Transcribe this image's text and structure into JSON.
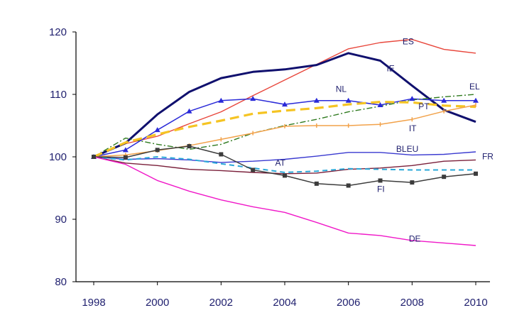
{
  "chart_data": {
    "type": "line",
    "title": "",
    "xlabel": "",
    "ylabel": "",
    "x": [
      1998,
      1999,
      2000,
      2001,
      2002,
      2003,
      2004,
      2005,
      2006,
      2007,
      2008,
      2009,
      2010
    ],
    "xticks": [
      1998,
      2000,
      2002,
      2004,
      2006,
      2008,
      2010
    ],
    "yticks": [
      80,
      90,
      100,
      110,
      120
    ],
    "xlim": [
      1998,
      2010
    ],
    "ylim": [
      80,
      120
    ],
    "grid": false,
    "legend": "none",
    "series": [
      {
        "name": "ES",
        "color": "#e8463b",
        "values": [
          100,
          102.1,
          103.3,
          105.3,
          107.2,
          109.8,
          112.3,
          114.8,
          117.3,
          118.3,
          118.8,
          117.2,
          116.6
        ]
      },
      {
        "name": "IE",
        "color": "#10106e",
        "values": [
          100,
          102.2,
          106.8,
          110.4,
          112.6,
          113.6,
          114.0,
          114.7,
          116.6,
          115.4,
          111.4,
          107.5,
          105.6
        ]
      },
      {
        "name": "NL",
        "color": "#2a2ad8",
        "values": [
          100,
          101.1,
          104.3,
          107.3,
          109.0,
          109.3,
          108.4,
          109.0,
          109.0,
          108.3,
          109.3,
          109.0,
          109.0
        ]
      },
      {
        "name": "EL",
        "color": "#2f7a1f",
        "values": [
          100,
          103.0,
          102.0,
          101.2,
          102.0,
          103.8,
          105.0,
          106.0,
          107.2,
          108.1,
          109.1,
          109.6,
          110.0
        ]
      },
      {
        "name": "PT",
        "color": "#f5c423",
        "values": [
          100,
          102.3,
          103.6,
          104.8,
          105.8,
          106.9,
          107.4,
          107.8,
          108.4,
          108.8,
          108.7,
          108.2,
          108.0
        ]
      },
      {
        "name": "IT",
        "color": "#f2a24a",
        "values": [
          100,
          100.3,
          101.0,
          101.8,
          102.8,
          103.8,
          104.9,
          105.0,
          105.0,
          105.2,
          106.0,
          107.3,
          108.3
        ]
      },
      {
        "name": "BLEU",
        "color": "#3a3ad0",
        "values": [
          100,
          99.6,
          99.7,
          99.5,
          99.1,
          99.3,
          99.6,
          100.1,
          100.7,
          100.7,
          100.3,
          100.4,
          100.8
        ]
      },
      {
        "name": "FR",
        "color": "#7a1f3a",
        "values": [
          100,
          99.0,
          98.6,
          98.0,
          97.8,
          97.5,
          97.3,
          97.4,
          98.0,
          98.2,
          98.6,
          99.3,
          99.5
        ]
      },
      {
        "name": "AT",
        "color": "#2aa8d8",
        "values": [
          100,
          99.5,
          100.0,
          99.6,
          98.9,
          98.2,
          97.5,
          97.7,
          98.1,
          98.0,
          97.9,
          97.9,
          97.9
        ]
      },
      {
        "name": "FI",
        "color": "#3c3c3c",
        "values": [
          100,
          99.9,
          101.1,
          101.7,
          100.4,
          97.9,
          97.0,
          95.7,
          95.4,
          96.2,
          95.9,
          96.8,
          97.3
        ]
      },
      {
        "name": "DE",
        "color": "#f018c8",
        "values": [
          100,
          98.8,
          96.2,
          94.5,
          93.1,
          92.0,
          91.1,
          89.5,
          87.8,
          87.4,
          86.6,
          86.2,
          85.8
        ]
      }
    ],
    "series_labels": [
      {
        "text": "ES",
        "x": 2007.7,
        "y": 118.0
      },
      {
        "text": "IE",
        "x": 2007.2,
        "y": 113.7
      },
      {
        "text": "NL",
        "x": 2005.6,
        "y": 110.4
      },
      {
        "text": "EL",
        "x": 2009.8,
        "y": 110.8
      },
      {
        "text": "PT",
        "x": 2008.2,
        "y": 107.6
      },
      {
        "text": "IT",
        "x": 2007.9,
        "y": 104.1
      },
      {
        "text": "BLEU",
        "x": 2007.5,
        "y": 100.8
      },
      {
        "text": "FR",
        "x": 2010.2,
        "y": 99.6
      },
      {
        "text": "AT",
        "x": 2003.7,
        "y": 98.6
      },
      {
        "text": "FI",
        "x": 2006.9,
        "y": 94.4
      },
      {
        "text": "DE",
        "x": 2007.9,
        "y": 86.4
      }
    ]
  }
}
